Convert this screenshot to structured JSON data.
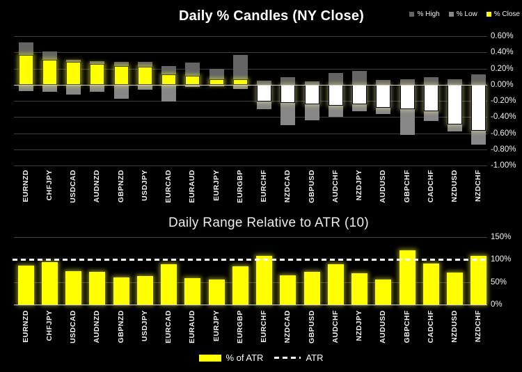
{
  "chart_data": [
    {
      "type": "candlestick",
      "title": "Daily % Candles (NY Close)",
      "categories": [
        "EURNZD",
        "CHFJPY",
        "USDCAD",
        "AUDNZD",
        "GBPNZD",
        "USDJPY",
        "EURCAD",
        "EURAUD",
        "EURJPY",
        "EURGBP",
        "EURCHF",
        "NZDCAD",
        "GBPUSD",
        "AUDCHF",
        "NZDJPY",
        "AUDUSD",
        "GBPCHF",
        "CADCHF",
        "NZDUSD",
        "NZDCHF"
      ],
      "series": [
        {
          "name": "% High",
          "color": "#646464",
          "values": [
            0.52,
            0.41,
            0.31,
            0.29,
            0.28,
            0.28,
            0.23,
            0.27,
            0.2,
            0.37,
            0.05,
            0.09,
            0.04,
            0.14,
            0.17,
            0.06,
            0.07,
            0.09,
            0.07,
            0.13
          ]
        },
        {
          "name": "% Low",
          "color": "#878787",
          "values": [
            -0.08,
            -0.09,
            -0.12,
            -0.09,
            -0.17,
            -0.06,
            -0.21,
            -0.03,
            -0.02,
            -0.05,
            -0.3,
            -0.5,
            -0.44,
            -0.4,
            -0.33,
            -0.36,
            -0.62,
            -0.45,
            -0.58,
            -0.74
          ]
        },
        {
          "name": "% Close",
          "color": "#ffff00",
          "values": [
            0.37,
            0.31,
            0.28,
            0.26,
            0.23,
            0.22,
            0.13,
            0.11,
            0.07,
            0.07,
            -0.21,
            -0.23,
            -0.24,
            -0.26,
            -0.24,
            -0.29,
            -0.3,
            -0.33,
            -0.49,
            -0.57
          ]
        }
      ],
      "yticks": [
        {
          "label": "0.60%",
          "value": 0.6
        },
        {
          "label": "0.40%",
          "value": 0.4
        },
        {
          "label": "0.20%",
          "value": 0.2
        },
        {
          "label": "0.00%",
          "value": 0.0
        },
        {
          "label": "-0.20%",
          "value": -0.2
        },
        {
          "label": "-0.40%",
          "value": -0.4
        },
        {
          "label": "-0.60%",
          "value": -0.6
        },
        {
          "label": "-0.80%",
          "value": -0.8
        },
        {
          "label": "-1.00%",
          "value": -1.0
        }
      ],
      "ylim": [
        -1.0,
        0.6
      ],
      "grid": true,
      "legend_position": "top-right",
      "colors": {
        "background": "#000000",
        "positive_body": "#ffff00",
        "negative_body": "#ffffff",
        "gridline": "#3d3d3d",
        "zero_line": "#cfcfcf",
        "text": "#f2f2f2"
      }
    },
    {
      "type": "bar",
      "title": "Daily Range Relative to ATR (10)",
      "categories": [
        "EURNZD",
        "CHFJPY",
        "USDCAD",
        "AUDNZD",
        "GBPNZD",
        "USDJPY",
        "EURCAD",
        "EURAUD",
        "EURJPY",
        "EURGBP",
        "EURCHF",
        "NZDCAD",
        "GBPUSD",
        "AUDCHF",
        "NZDJPY",
        "AUDUSD",
        "GBPCHF",
        "CADCHF",
        "NZDUSD",
        "NZDCHF"
      ],
      "series": [
        {
          "name": "% of ATR",
          "color": "#ffff00",
          "values": [
            86,
            94,
            74,
            73,
            61,
            63,
            89,
            58,
            56,
            85,
            108,
            65,
            73,
            90,
            70,
            56,
            120,
            92,
            71,
            108
          ]
        }
      ],
      "reference_line": {
        "name": "ATR",
        "value": 100,
        "style": "dashed",
        "color": "#ffffff"
      },
      "yticks": [
        {
          "label": "150%",
          "value": 150
        },
        {
          "label": "100%",
          "value": 100
        },
        {
          "label": "50%",
          "value": 50
        },
        {
          "label": "0%",
          "value": 0
        }
      ],
      "ylim": [
        0,
        150
      ],
      "grid": true,
      "legend_position": "bottom-center"
    }
  ]
}
